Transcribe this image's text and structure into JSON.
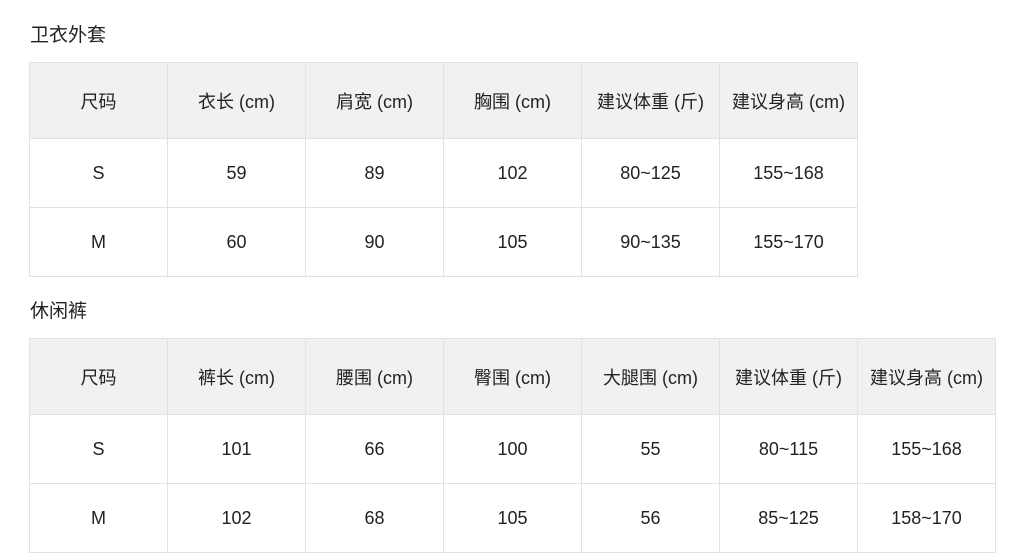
{
  "tables": [
    {
      "title": "卫衣外套",
      "headers": [
        "尺码",
        "衣长 (cm)",
        "肩宽 (cm)",
        "胸围 (cm)",
        "建议体重 (斤)",
        "建议身高 (cm)"
      ],
      "rows": [
        [
          "S",
          "59",
          "89",
          "102",
          "80~125",
          "155~168"
        ],
        [
          "M",
          "60",
          "90",
          "105",
          "90~135",
          "155~170"
        ]
      ]
    },
    {
      "title": "休闲裤",
      "headers": [
        "尺码",
        "裤长 (cm)",
        "腰围 (cm)",
        "臀围 (cm)",
        "大腿围 (cm)",
        "建议体重 (斤)",
        "建议身高 (cm)"
      ],
      "rows": [
        [
          "S",
          "101",
          "66",
          "100",
          "55",
          "80~115",
          "155~168"
        ],
        [
          "M",
          "102",
          "68",
          "105",
          "56",
          "85~125",
          "158~170"
        ]
      ]
    }
  ]
}
